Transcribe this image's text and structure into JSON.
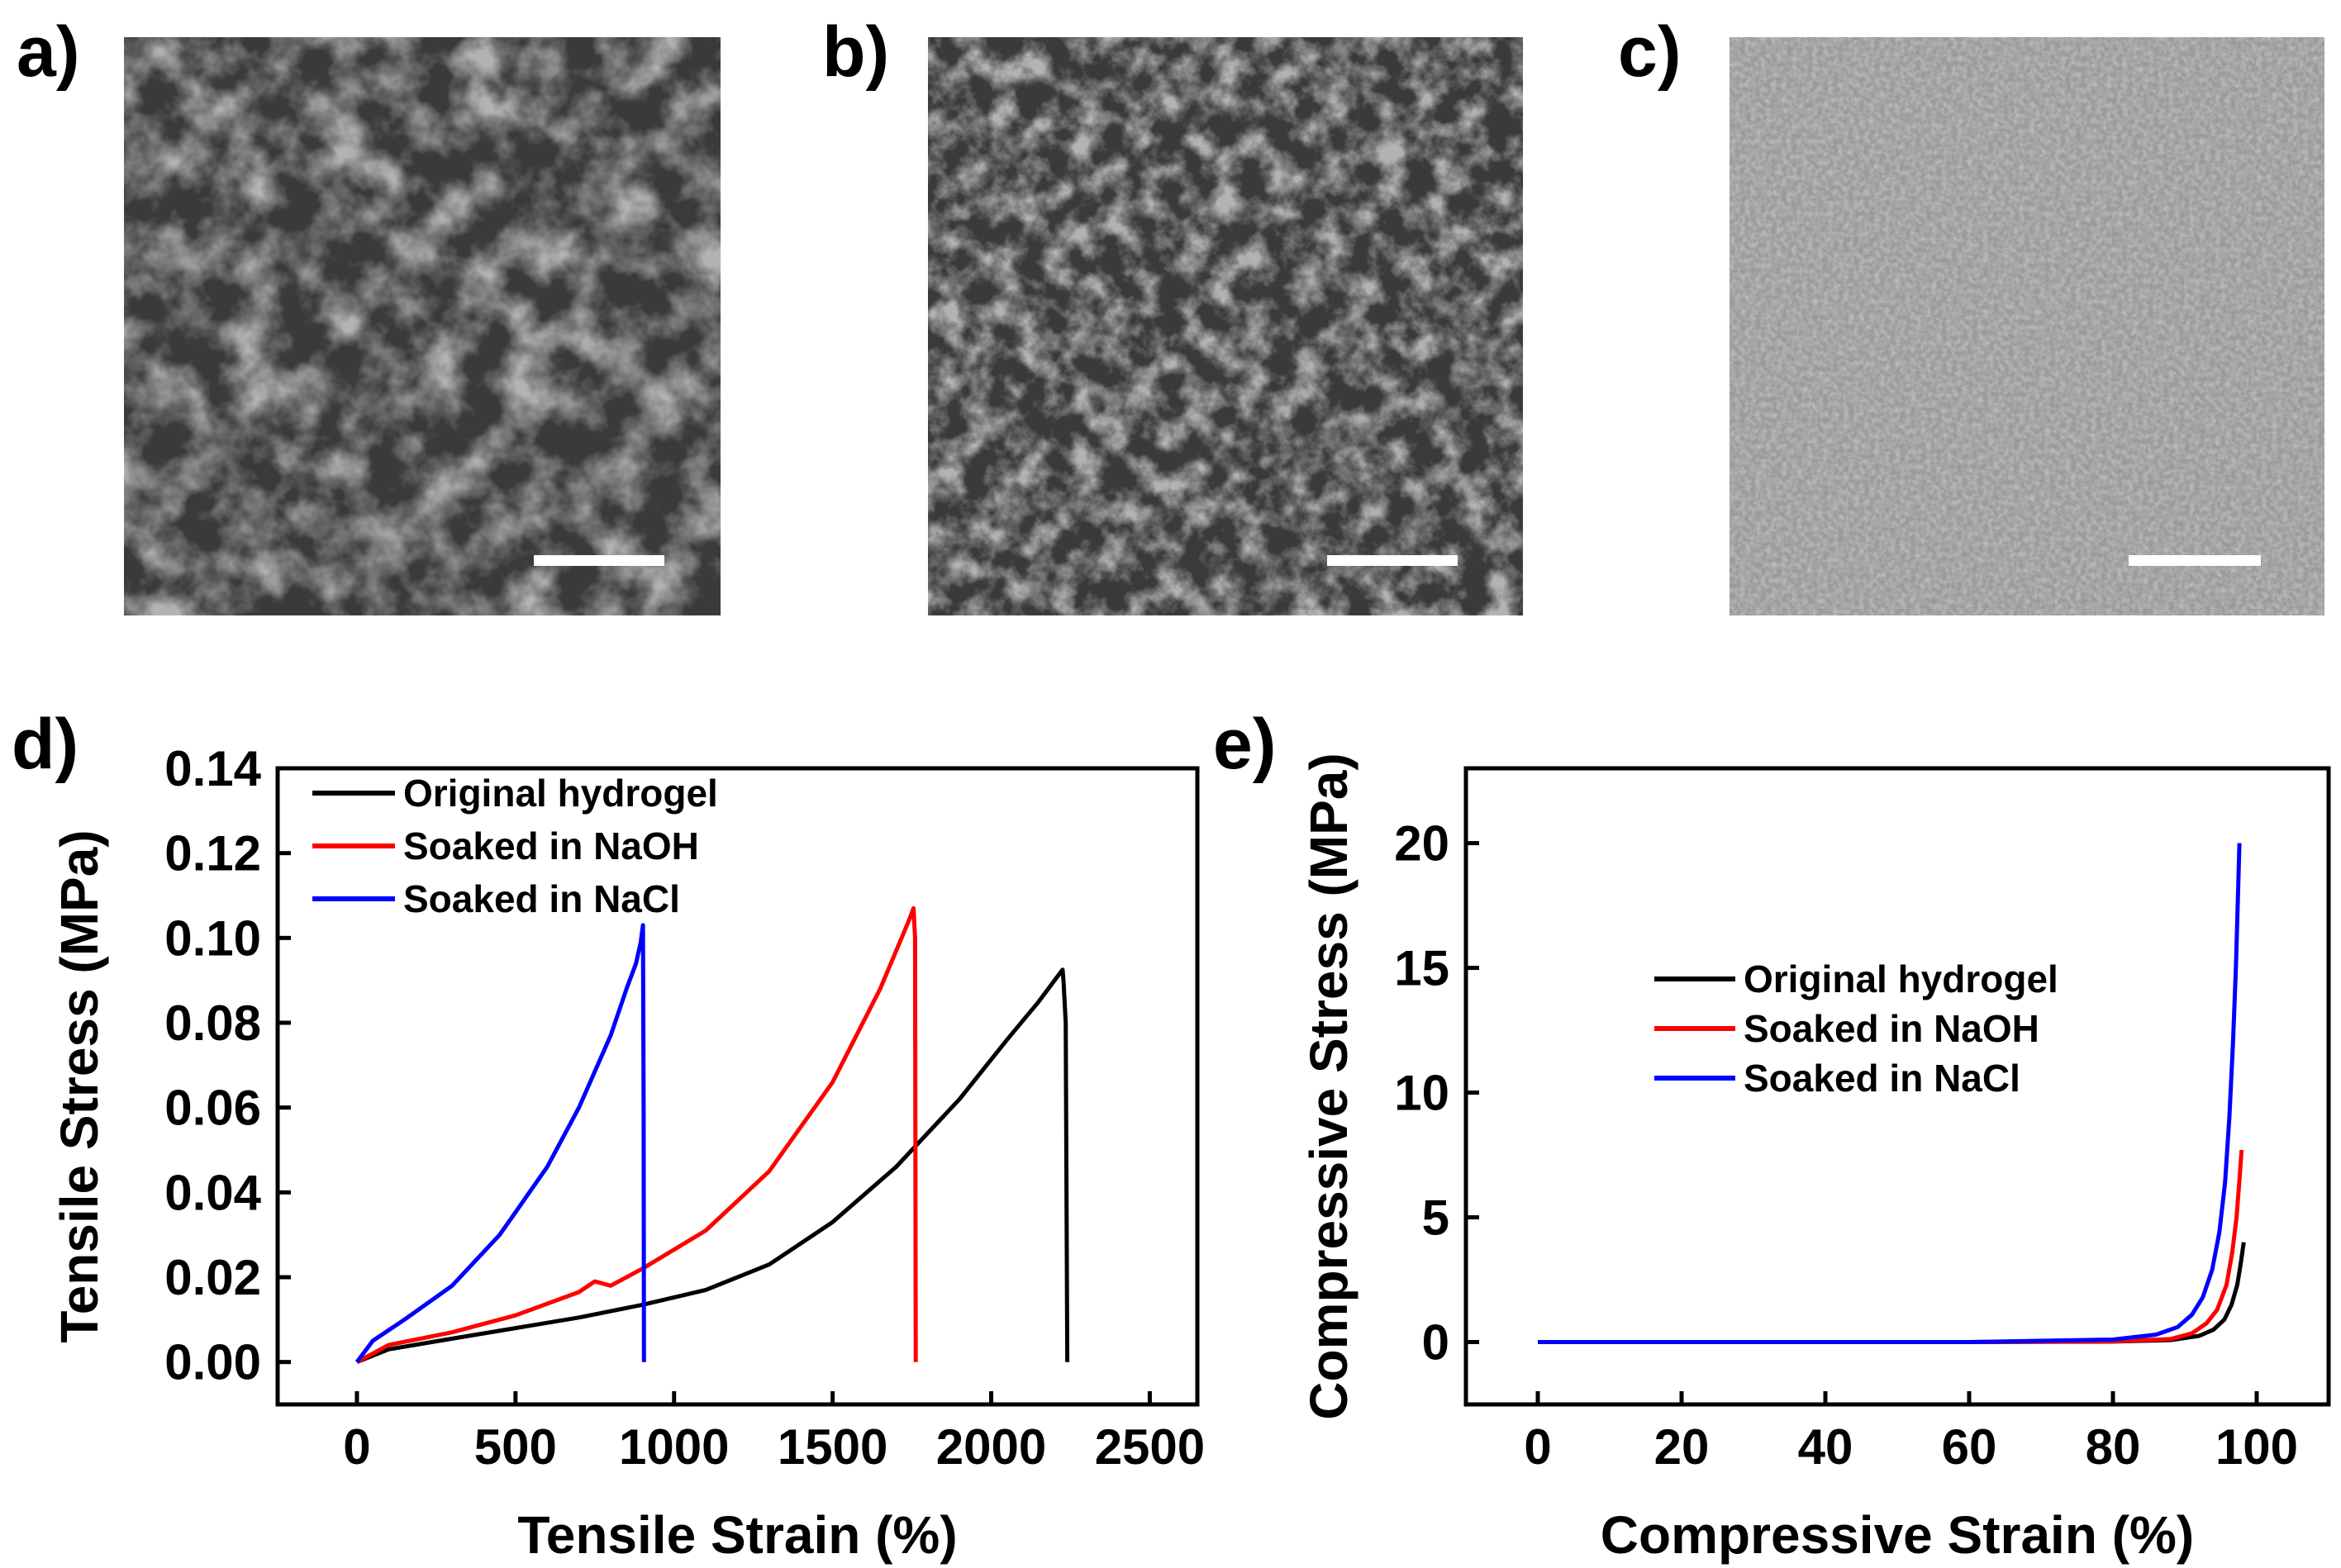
{
  "panels": {
    "a": {
      "label": "a)"
    },
    "b": {
      "label": "b)"
    },
    "c": {
      "label": "c)"
    },
    "d": {
      "label": "d)"
    },
    "e": {
      "label": "e)"
    }
  },
  "colors": {
    "original": "#000000",
    "naoh": "#ff0000",
    "nacl": "#0000ff",
    "sem_dark": "#3a3a3a",
    "sem_mid": "#8a8a8a",
    "sem_light": "#cfcfcf",
    "sem_fine": "#9a9a9a"
  },
  "chart_data": [
    {
      "id": "d",
      "type": "line",
      "title": "",
      "xlabel": "Tensile Strain (%)",
      "ylabel": "Tensile Stress (MPa)",
      "xlim": [
        -250,
        2650
      ],
      "ylim": [
        -0.01,
        0.14
      ],
      "xticks": [
        0,
        500,
        1000,
        1500,
        2000,
        2500
      ],
      "yticks": [
        0.0,
        0.02,
        0.04,
        0.06,
        0.08,
        0.1,
        0.12,
        0.14
      ],
      "xtick_labels": [
        "0",
        "500",
        "1000",
        "1500",
        "2000",
        "2500"
      ],
      "ytick_labels": [
        "0.00",
        "0.02",
        "0.04",
        "0.06",
        "0.08",
        "0.10",
        "0.12",
        "0.14"
      ],
      "legend_position": "top-left",
      "series": [
        {
          "name": "Original hydrogel",
          "color_key": "original",
          "x": [
            0,
            100,
            300,
            500,
            700,
            900,
            1100,
            1300,
            1500,
            1700,
            1900,
            2050,
            2150,
            2210,
            2225,
            2228,
            2235,
            2240
          ],
          "y": [
            0.0,
            0.003,
            0.0055,
            0.008,
            0.0105,
            0.0135,
            0.017,
            0.023,
            0.033,
            0.046,
            0.062,
            0.076,
            0.085,
            0.091,
            0.0925,
            0.09,
            0.08,
            0.0
          ]
        },
        {
          "name": "Soaked in NaOH",
          "color_key": "naoh",
          "x": [
            0,
            100,
            300,
            500,
            700,
            750,
            800,
            900,
            1100,
            1300,
            1500,
            1650,
            1740,
            1755,
            1760,
            1762
          ],
          "y": [
            0.0,
            0.004,
            0.007,
            0.011,
            0.0165,
            0.019,
            0.018,
            0.022,
            0.031,
            0.045,
            0.066,
            0.088,
            0.104,
            0.107,
            0.1,
            0.0
          ]
        },
        {
          "name": "Soaked in NaCl",
          "color_key": "nacl",
          "x": [
            0,
            50,
            150,
            300,
            450,
            600,
            700,
            800,
            850,
            880,
            895,
            902,
            904,
            905
          ],
          "y": [
            0.0,
            0.005,
            0.01,
            0.018,
            0.03,
            0.046,
            0.06,
            0.077,
            0.088,
            0.094,
            0.099,
            0.103,
            0.06,
            0.0
          ]
        }
      ]
    },
    {
      "id": "e",
      "type": "line",
      "title": "",
      "xlabel": "Compressive Strain (%)",
      "ylabel": "Compressive Stress (MPa)",
      "xlim": [
        -10,
        110
      ],
      "ylim": [
        -2.5,
        23
      ],
      "xticks": [
        0,
        20,
        40,
        60,
        80,
        100
      ],
      "yticks": [
        0,
        5,
        10,
        15,
        20
      ],
      "xtick_labels": [
        "0",
        "20",
        "40",
        "60",
        "80",
        "100"
      ],
      "ytick_labels": [
        "0",
        "5",
        "10",
        "15",
        "20"
      ],
      "legend_position": "center",
      "series": [
        {
          "name": "Original hydrogel",
          "color_key": "original",
          "x": [
            0,
            20,
            40,
            60,
            80,
            88,
            92,
            94,
            95.5,
            96.5,
            97.3,
            97.8,
            98.2
          ],
          "y": [
            0,
            0,
            0,
            0,
            0.02,
            0.08,
            0.25,
            0.5,
            0.9,
            1.5,
            2.3,
            3.2,
            4.0
          ]
        },
        {
          "name": "Soaked in NaOH",
          "color_key": "naoh",
          "x": [
            0,
            20,
            40,
            60,
            80,
            88,
            91,
            93,
            94.5,
            95.8,
            96.6,
            97.2,
            97.6,
            97.9
          ],
          "y": [
            0,
            0,
            0,
            0,
            0.03,
            0.12,
            0.35,
            0.75,
            1.3,
            2.3,
            3.6,
            5.0,
            6.5,
            7.7
          ]
        },
        {
          "name": "Soaked in NaCl",
          "color_key": "nacl",
          "x": [
            0,
            20,
            40,
            60,
            80,
            86,
            89,
            91,
            92.5,
            93.8,
            94.8,
            95.6,
            96.2,
            96.7,
            97.1,
            97.4,
            97.6
          ],
          "y": [
            0,
            0,
            0,
            0,
            0.1,
            0.3,
            0.6,
            1.1,
            1.8,
            2.9,
            4.4,
            6.4,
            9.0,
            12.0,
            15.0,
            18.0,
            20.0
          ]
        }
      ]
    }
  ]
}
